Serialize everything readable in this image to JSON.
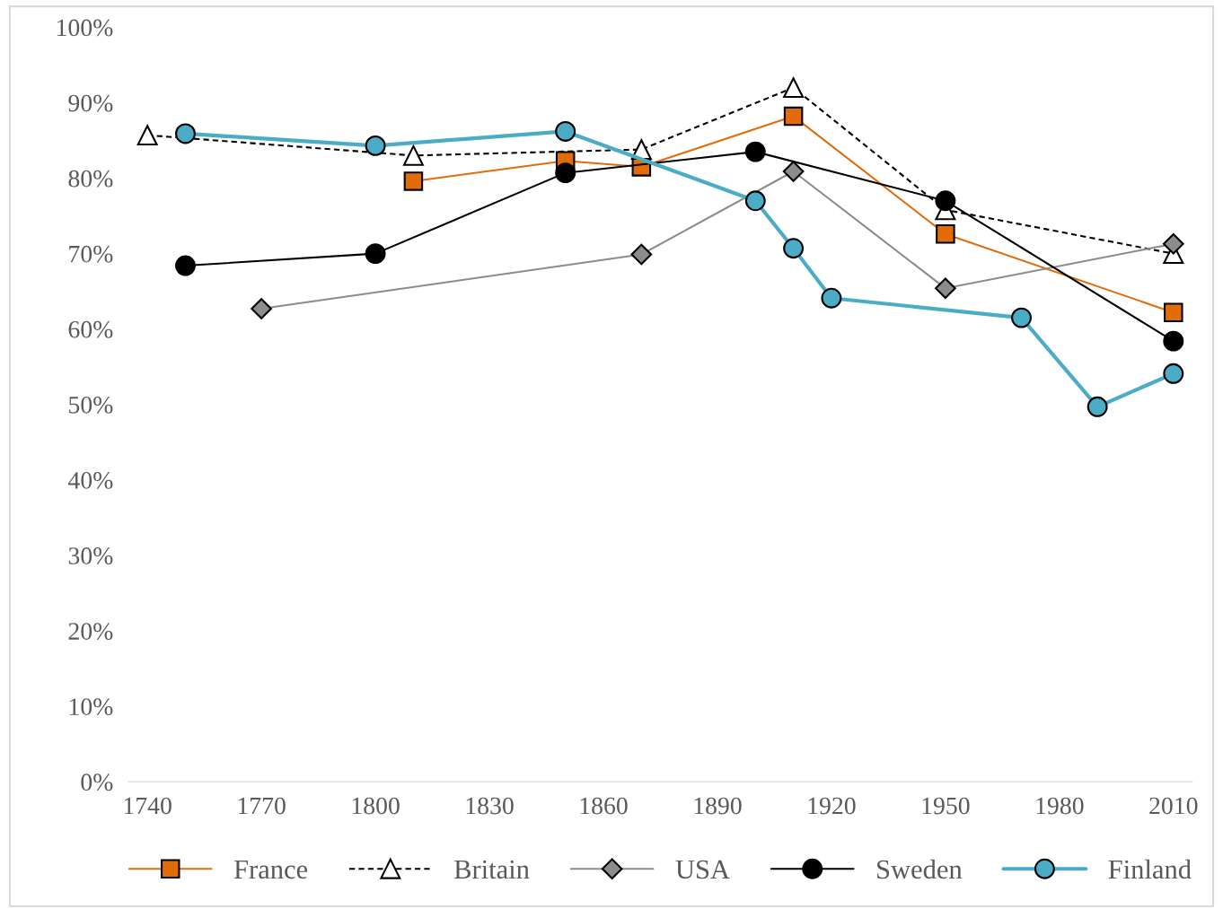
{
  "chart_data": {
    "type": "line",
    "xlim": [
      1735,
      2015
    ],
    "xticks": [
      1740,
      1770,
      1800,
      1830,
      1860,
      1890,
      1920,
      1950,
      1980,
      2010
    ],
    "ylim": [
      0,
      100
    ],
    "yticks": [
      {
        "value": 0,
        "label": "0%"
      },
      {
        "value": 10,
        "label": "10%"
      },
      {
        "value": 20,
        "label": "20%"
      },
      {
        "value": 30,
        "label": "30%"
      },
      {
        "value": 40,
        "label": "40%"
      },
      {
        "value": 50,
        "label": "50%"
      },
      {
        "value": 60,
        "label": "60%"
      },
      {
        "value": 70,
        "label": "70%"
      },
      {
        "value": 80,
        "label": "80%"
      },
      {
        "value": 90,
        "label": "90%"
      },
      {
        "value": 100,
        "label": "100%"
      }
    ],
    "grid": false,
    "legend": "bottom",
    "series": [
      {
        "name": "France",
        "color": "#e36c0a",
        "marker": "square",
        "line_style": "solid",
        "x": [
          1810,
          1850,
          1870,
          1910,
          1950,
          2010
        ],
        "values": [
          79.6,
          82.3,
          81.5,
          88.2,
          72.6,
          62.2
        ]
      },
      {
        "name": "Britain",
        "color": "#000000",
        "marker": "triangle",
        "line_style": "dashed",
        "x": [
          1740,
          1810,
          1870,
          1910,
          1950,
          2010
        ],
        "values": [
          85.7,
          83.0,
          83.8,
          92.0,
          75.8,
          70.0
        ]
      },
      {
        "name": "USA",
        "color": "#8c8c8c",
        "marker": "diamond",
        "line_style": "solid",
        "x": [
          1770,
          1870,
          1910,
          1950,
          2010
        ],
        "values": [
          62.7,
          69.9,
          80.9,
          65.4,
          71.3
        ]
      },
      {
        "name": "Sweden",
        "color": "#000000",
        "marker": "circle",
        "line_style": "solid",
        "x": [
          1750,
          1800,
          1850,
          1900,
          1950,
          2010
        ],
        "values": [
          68.4,
          70.0,
          80.7,
          83.5,
          77.0,
          58.4
        ]
      },
      {
        "name": "Finland",
        "color": "#4bacc6",
        "marker": "circle",
        "line_style": "solid",
        "x": [
          1750,
          1800,
          1850,
          1900,
          1910,
          1920,
          1970,
          1990,
          2010
        ],
        "values": [
          85.9,
          84.3,
          86.2,
          77.0,
          70.7,
          64.1,
          61.5,
          49.7,
          54.1
        ]
      }
    ]
  }
}
